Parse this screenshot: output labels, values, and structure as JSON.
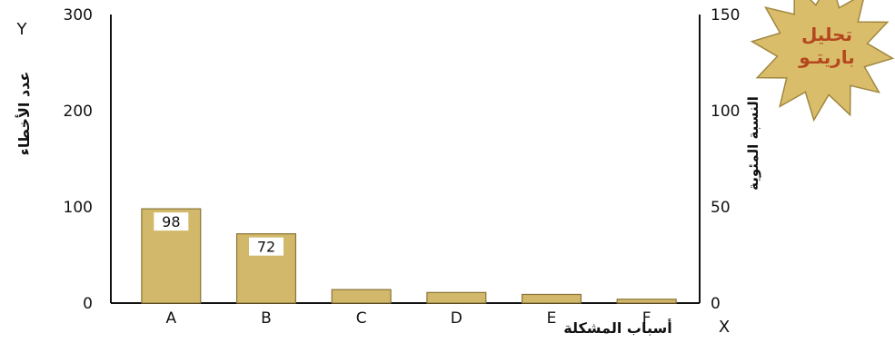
{
  "chart_data": {
    "type": "bar",
    "categories": [
      "A",
      "B",
      "C",
      "D",
      "E",
      "F"
    ],
    "values": [
      98,
      72,
      14,
      11,
      9,
      4
    ],
    "data_labels": [
      {
        "category": "A",
        "text": "98"
      },
      {
        "category": "B",
        "text": "72"
      }
    ],
    "xlabel": "أسباب المشكلة",
    "x_axis_letter": "X",
    "ylabel": "عدد الأخطاء",
    "y_axis_letter": "Y",
    "ylim": [
      0,
      300
    ],
    "y_ticks": [
      "0",
      "100",
      "200",
      "300"
    ],
    "y2label": "النسبة المئوية",
    "y2lim": [
      0,
      150
    ],
    "y2_ticks": [
      "0",
      "50",
      "100",
      "150"
    ],
    "grid": false,
    "bar_color": "#d1b86a",
    "bar_border_color": "#8a7437"
  },
  "badge": {
    "line1": "تحليل",
    "line2": "باريتـو",
    "fill_color": "#d9bd6a",
    "text_color": "#b5471f"
  }
}
